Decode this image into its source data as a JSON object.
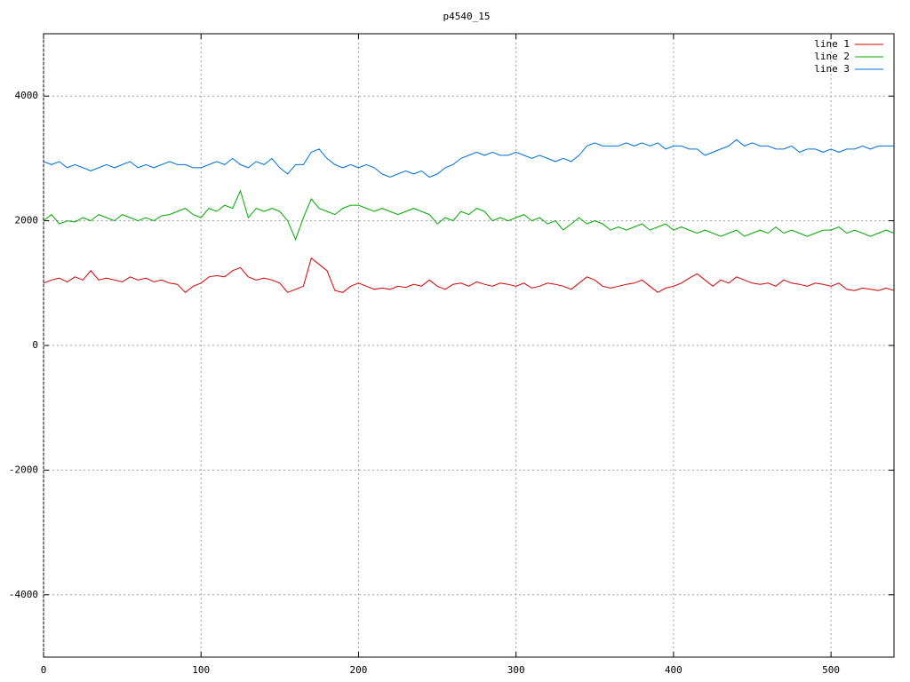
{
  "chart_data": {
    "type": "line",
    "title": "p4540_15",
    "x": [
      0,
      5,
      10,
      15,
      20,
      25,
      30,
      35,
      40,
      45,
      50,
      55,
      60,
      65,
      70,
      75,
      80,
      85,
      90,
      95,
      100,
      105,
      110,
      115,
      120,
      125,
      130,
      135,
      140,
      145,
      150,
      155,
      160,
      165,
      170,
      175,
      180,
      185,
      190,
      195,
      200,
      205,
      210,
      215,
      220,
      225,
      230,
      235,
      240,
      245,
      250,
      255,
      260,
      265,
      270,
      275,
      280,
      285,
      290,
      295,
      300,
      305,
      310,
      315,
      320,
      325,
      330,
      335,
      340,
      345,
      350,
      355,
      360,
      365,
      370,
      375,
      380,
      385,
      390,
      395,
      400,
      405,
      410,
      415,
      420,
      425,
      430,
      435,
      440,
      445,
      450,
      455,
      460,
      465,
      470,
      475,
      480,
      485,
      490,
      495,
      500,
      505,
      510,
      515,
      520,
      525,
      530,
      535,
      540
    ],
    "series": [
      {
        "name": "line 1",
        "color": "#d40000",
        "values": [
          1000,
          1050,
          1080,
          1020,
          1100,
          1050,
          1200,
          1050,
          1080,
          1050,
          1020,
          1100,
          1050,
          1080,
          1020,
          1050,
          1000,
          980,
          850,
          950,
          1000,
          1100,
          1120,
          1100,
          1200,
          1250,
          1100,
          1050,
          1080,
          1050,
          1000,
          850,
          900,
          950,
          1400,
          1300,
          1200,
          880,
          850,
          950,
          1000,
          950,
          900,
          920,
          900,
          950,
          930,
          980,
          950,
          1050,
          950,
          900,
          980,
          1000,
          950,
          1020,
          980,
          950,
          1000,
          980,
          950,
          1000,
          920,
          950,
          1000,
          980,
          950,
          900,
          1000,
          1100,
          1050,
          950,
          920,
          950,
          980,
          1000,
          1050,
          950,
          850,
          920,
          950,
          1000,
          1080,
          1150,
          1050,
          950,
          1050,
          1000,
          1100,
          1050,
          1000,
          980,
          1000,
          950,
          1050,
          1000,
          980,
          950,
          1000,
          980,
          950,
          1000,
          900,
          880,
          920,
          900,
          880,
          920,
          880
        ]
      },
      {
        "name": "line 2",
        "color": "#00a800",
        "values": [
          2000,
          2100,
          1950,
          2000,
          1980,
          2050,
          2000,
          2100,
          2050,
          2000,
          2100,
          2050,
          2000,
          2050,
          2000,
          2080,
          2100,
          2150,
          2200,
          2100,
          2050,
          2200,
          2150,
          2250,
          2200,
          2480,
          2050,
          2200,
          2150,
          2200,
          2150,
          2000,
          1700,
          2050,
          2350,
          2200,
          2150,
          2100,
          2200,
          2250,
          2250,
          2200,
          2150,
          2200,
          2150,
          2100,
          2150,
          2200,
          2150,
          2100,
          1950,
          2050,
          2000,
          2150,
          2100,
          2200,
          2150,
          2000,
          2050,
          2000,
          2050,
          2100,
          2000,
          2050,
          1950,
          2000,
          1850,
          1950,
          2050,
          1950,
          2000,
          1950,
          1850,
          1900,
          1850,
          1900,
          1950,
          1850,
          1900,
          1950,
          1850,
          1900,
          1850,
          1800,
          1850,
          1800,
          1750,
          1800,
          1850,
          1750,
          1800,
          1850,
          1800,
          1900,
          1800,
          1850,
          1800,
          1750,
          1800,
          1850,
          1850,
          1900,
          1800,
          1850,
          1800,
          1750,
          1800,
          1850,
          1800
        ]
      },
      {
        "name": "line 3",
        "color": "#0070d8",
        "values": [
          2950,
          2900,
          2950,
          2850,
          2900,
          2850,
          2800,
          2850,
          2900,
          2850,
          2900,
          2950,
          2850,
          2900,
          2850,
          2900,
          2950,
          2900,
          2900,
          2850,
          2850,
          2900,
          2950,
          2900,
          3000,
          2900,
          2850,
          2950,
          2900,
          3000,
          2850,
          2750,
          2900,
          2900,
          3100,
          3150,
          3000,
          2900,
          2850,
          2900,
          2850,
          2900,
          2850,
          2750,
          2700,
          2750,
          2800,
          2750,
          2800,
          2700,
          2750,
          2850,
          2900,
          3000,
          3050,
          3100,
          3050,
          3100,
          3050,
          3050,
          3100,
          3050,
          3000,
          3050,
          3000,
          2950,
          3000,
          2950,
          3050,
          3200,
          3250,
          3200,
          3200,
          3200,
          3250,
          3200,
          3250,
          3200,
          3250,
          3150,
          3200,
          3200,
          3150,
          3150,
          3050,
          3100,
          3150,
          3200,
          3300,
          3200,
          3250,
          3200,
          3200,
          3150,
          3150,
          3200,
          3100,
          3150,
          3150,
          3100,
          3150,
          3100,
          3150,
          3150,
          3200,
          3150,
          3200,
          3200,
          3200
        ]
      }
    ],
    "xlim": [
      0,
      540
    ],
    "ylim": [
      -5000,
      5000
    ],
    "xticks": [
      0,
      100,
      200,
      300,
      400,
      500
    ],
    "yticks": [
      -4000,
      -2000,
      0,
      2000,
      4000
    ],
    "grid": true,
    "legend": "top-right"
  }
}
